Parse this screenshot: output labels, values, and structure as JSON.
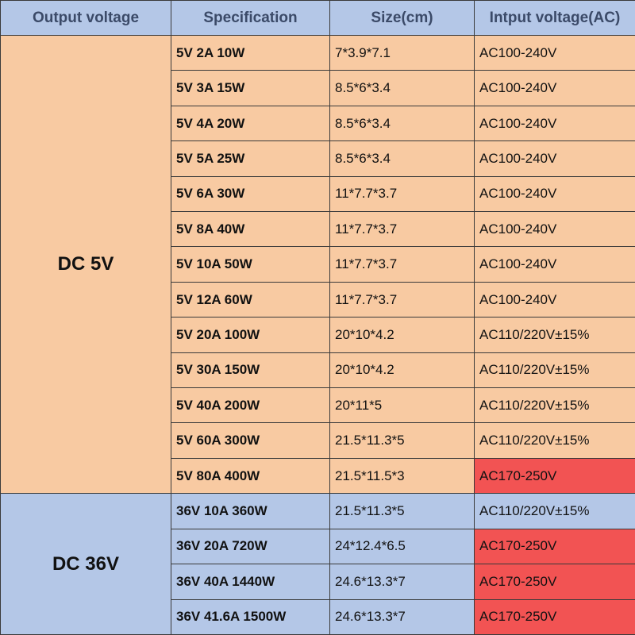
{
  "header": [
    "Output voltage",
    "Specification",
    "Size(cm)",
    "Intput voltage(AC)"
  ],
  "header_color": "#b4c7e7",
  "groups": [
    {
      "label": "DC 5V",
      "color": "#f8caa2",
      "rows": [
        {
          "cells": [
            "5V 2A 10W",
            "7*3.9*7.1",
            "AC100-240V"
          ]
        },
        {
          "cells": [
            "5V 3A 15W",
            "8.5*6*3.4",
            "AC100-240V"
          ]
        },
        {
          "cells": [
            "5V 4A 20W",
            "8.5*6*3.4",
            "AC100-240V"
          ]
        },
        {
          "cells": [
            "5V 5A 25W",
            "8.5*6*3.4",
            "AC100-240V"
          ]
        },
        {
          "cells": [
            "5V 6A 30W",
            "11*7.7*3.7",
            "AC100-240V"
          ]
        },
        {
          "cells": [
            "5V 8A 40W",
            "11*7.7*3.7",
            "AC100-240V"
          ]
        },
        {
          "cells": [
            "5V 10A 50W",
            "11*7.7*3.7",
            "AC100-240V"
          ]
        },
        {
          "cells": [
            "5V 12A 60W",
            "11*7.7*3.7",
            "AC100-240V"
          ]
        },
        {
          "cells": [
            "5V 20A 100W",
            "20*10*4.2",
            "AC110/220V±15%"
          ]
        },
        {
          "cells": [
            "5V 30A 150W",
            "20*10*4.2",
            "AC110/220V±15%"
          ]
        },
        {
          "cells": [
            "5V 40A 200W",
            "20*11*5",
            "AC110/220V±15%"
          ]
        },
        {
          "cells": [
            "5V 60A 300W",
            "21.5*11.3*5",
            "AC110/220V±15%"
          ]
        },
        {
          "cells": [
            "5V 80A 400W",
            "21.5*11.5*3",
            "AC170-250V"
          ],
          "input_color": "#f25353"
        }
      ]
    },
    {
      "label": "DC 36V",
      "color": "#b4c7e7",
      "rows": [
        {
          "cells": [
            "36V 10A 360W",
            "21.5*11.3*5",
            "AC110/220V±15%"
          ]
        },
        {
          "cells": [
            "36V 20A 720W",
            "24*12.4*6.5",
            "AC170-250V"
          ],
          "input_color": "#f25353"
        },
        {
          "cells": [
            "36V 40A 1440W",
            "24.6*13.3*7",
            "AC170-250V"
          ],
          "input_color": "#f25353"
        },
        {
          "cells": [
            "36V 41.6A 1500W",
            "24.6*13.3*7",
            "AC170-250V"
          ],
          "input_color": "#f25353"
        }
      ]
    }
  ]
}
